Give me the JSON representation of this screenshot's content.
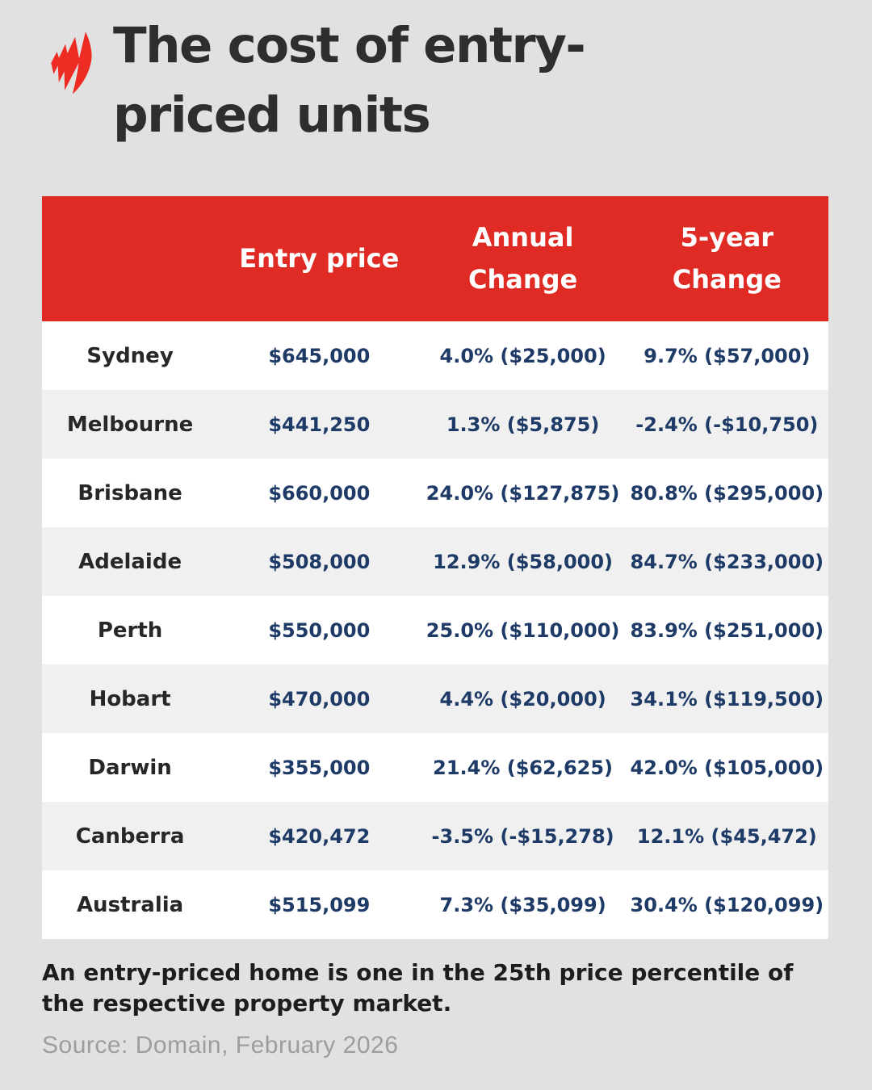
{
  "page": {
    "background_color": "#e1e1e1"
  },
  "brand": {
    "logo_icon": "sbs-mercury-logo",
    "logo_color": "#ee2c23"
  },
  "header": {
    "title_line1": "The cost of entry-",
    "title_line2": "priced units",
    "title_color": "#2e2e2e"
  },
  "chart_data": {
    "type": "table",
    "title": "The cost of entry-priced units",
    "columns": [
      "",
      "Entry price",
      "Annual\nChange",
      "5-year\nChange"
    ],
    "rows": [
      [
        "Sydney",
        "$645,000",
        "4.0% ($25,000)",
        "9.7% ($57,000)"
      ],
      [
        "Melbourne",
        "$441,250",
        "1.3% ($5,875)",
        "-2.4% (-$10,750)"
      ],
      [
        "Brisbane",
        "$660,000",
        "24.0% ($127,875)",
        "80.8% ($295,000)"
      ],
      [
        "Adelaide",
        "$508,000",
        "12.9% ($58,000)",
        "84.7% ($233,000)"
      ],
      [
        "Perth",
        "$550,000",
        "25.0% ($110,000)",
        "83.9% ($251,000)"
      ],
      [
        "Hobart",
        "$470,000",
        "4.4% ($20,000)",
        "34.1% ($119,500)"
      ],
      [
        "Darwin",
        "$355,000",
        "21.4% ($62,625)",
        "42.0% ($105,000)"
      ],
      [
        "Canberra",
        "$420,472",
        "-3.5% (-$15,278)",
        "12.1% ($45,472)"
      ],
      [
        "Australia",
        "$515,099",
        "7.3% ($35,099)",
        "30.4% ($120,099)"
      ]
    ],
    "layout_hints": {
      "header_bg": "#e02a24",
      "header_text_color": "#ffffff",
      "row_bg": "#ffffff",
      "row_alt_bg": "#f0f0f0",
      "city_text_color": "#272727",
      "value_text_color": "#1e3a66",
      "stripe_pattern": "even rows white, odd rows light gray"
    }
  },
  "footer": {
    "note": "An entry-priced home is one in the 25th price percentile of the respective property market.",
    "source": "Source: Domain, February 2026"
  }
}
